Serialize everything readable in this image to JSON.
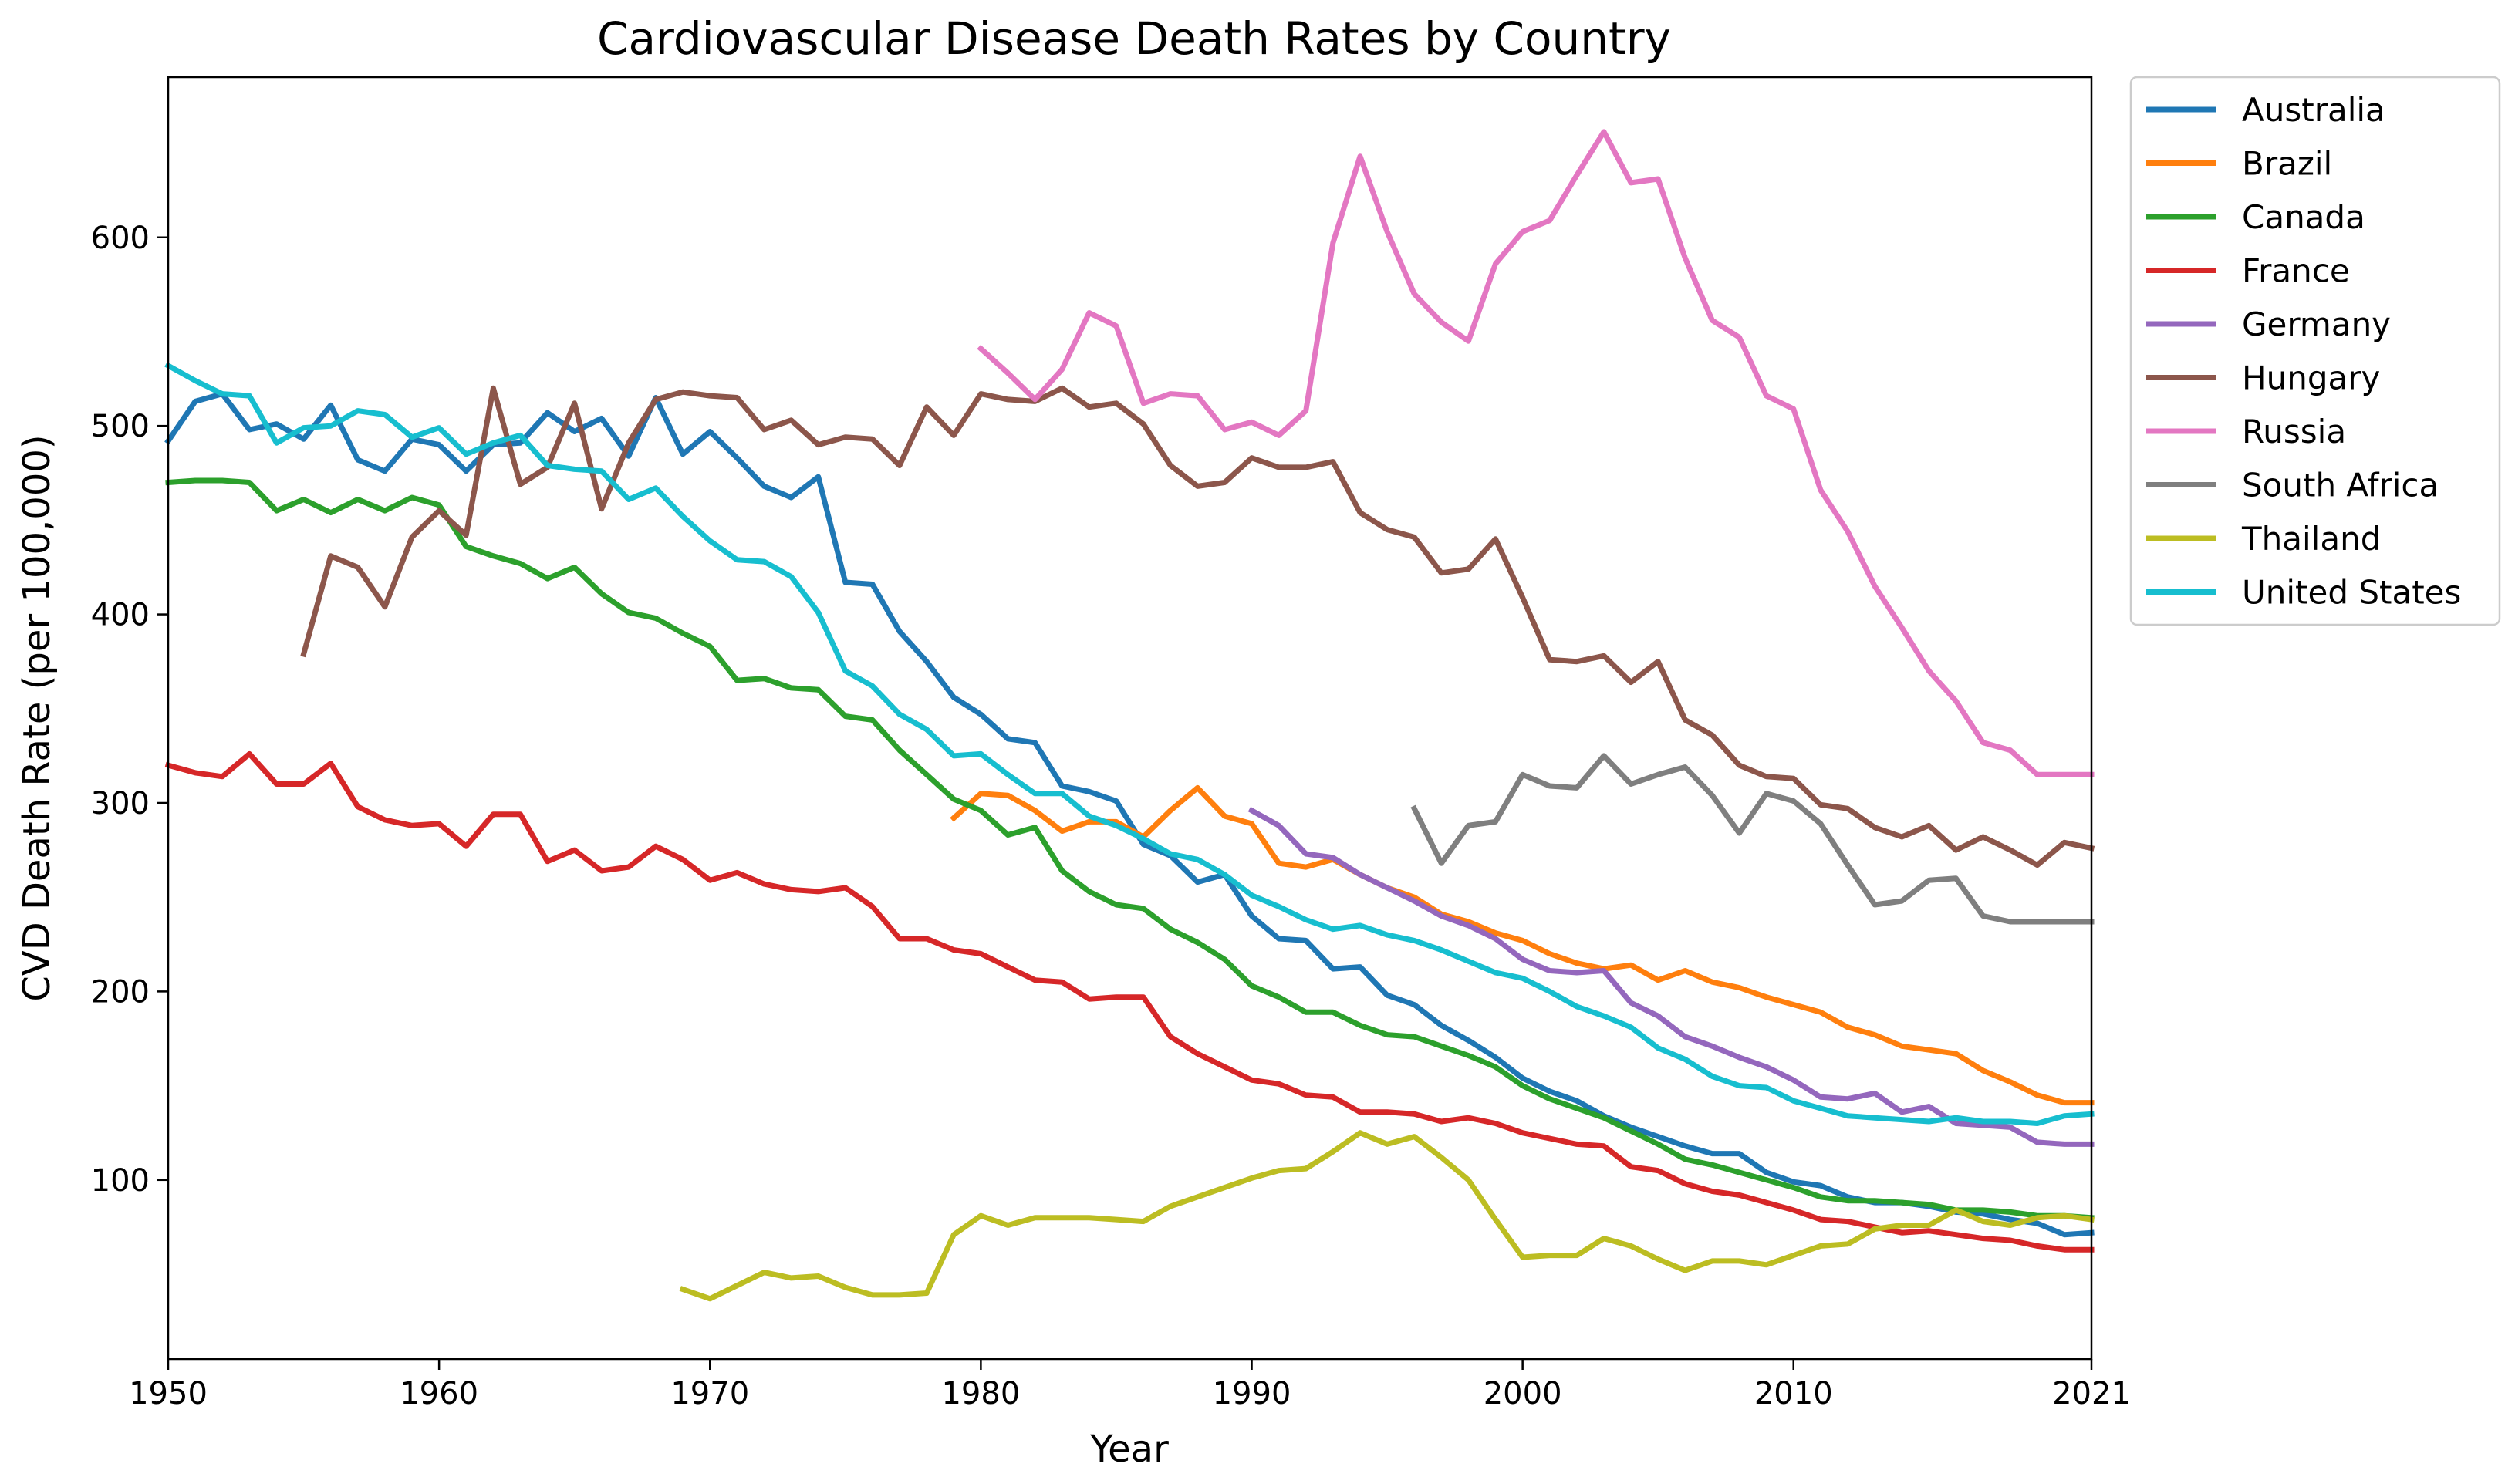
{
  "chart_data": {
    "type": "line",
    "title": "Cardiovascular Disease Death Rates by Country",
    "xlabel": "Year",
    "ylabel": "CVD Death Rate (per 100,000)",
    "xlim": [
      1950,
      2021
    ],
    "ylim": [
      5,
      685
    ],
    "xticks": [
      1950,
      1960,
      1970,
      1980,
      1990,
      2000,
      2010,
      2021
    ],
    "yticks": [
      100,
      200,
      300,
      400,
      500,
      600
    ],
    "grid": false,
    "legend_position": "outside-top-right",
    "series": [
      {
        "name": "Australia",
        "color": "#1f77b4",
        "x_start": 1950,
        "values": [
          492,
          513,
          517,
          498,
          501,
          493,
          511,
          482,
          476,
          493,
          490,
          476,
          490,
          491,
          507,
          497,
          504,
          484,
          515,
          485,
          497,
          483,
          468,
          462,
          473,
          417,
          416,
          391,
          375,
          356,
          347,
          334,
          332,
          309,
          306,
          301,
          278,
          272,
          258,
          262,
          240,
          228,
          227,
          212,
          213,
          198,
          193,
          182,
          174,
          165,
          154,
          147,
          142,
          134,
          128,
          123,
          118,
          114,
          114,
          104,
          99,
          97,
          91,
          88,
          88,
          86,
          83,
          82,
          79,
          77,
          71,
          72
        ]
      },
      {
        "name": "Brazil",
        "color": "#ff7f0e",
        "x_start": 1979,
        "values": [
          292,
          305,
          304,
          296,
          285,
          290,
          290,
          282,
          296,
          308,
          293,
          289,
          268,
          266,
          270,
          262,
          255,
          250,
          241,
          237,
          231,
          227,
          220,
          215,
          212,
          214,
          206,
          211,
          205,
          202,
          197,
          193,
          189,
          181,
          177,
          171,
          169,
          167,
          158,
          152,
          145,
          141,
          141
        ]
      },
      {
        "name": "Canada",
        "color": "#2ca02c",
        "x_start": 1950,
        "values": [
          470,
          471,
          471,
          470,
          455,
          461,
          454,
          461,
          455,
          462,
          458,
          436,
          431,
          427,
          419,
          425,
          411,
          401,
          398,
          390,
          383,
          365,
          366,
          361,
          360,
          346,
          344,
          328,
          315,
          302,
          296,
          283,
          287,
          264,
          253,
          246,
          244,
          233,
          226,
          217,
          203,
          197,
          189,
          189,
          182,
          177,
          176,
          171,
          166,
          160,
          150,
          143,
          138,
          133,
          126,
          119,
          111,
          108,
          104,
          100,
          96,
          91,
          89,
          89,
          88,
          87,
          84,
          84,
          83,
          81,
          81,
          80
        ]
      },
      {
        "name": "France",
        "color": "#d62728",
        "x_start": 1950,
        "values": [
          320,
          316,
          314,
          326,
          310,
          310,
          321,
          298,
          291,
          288,
          289,
          277,
          294,
          294,
          269,
          275,
          264,
          266,
          277,
          270,
          259,
          263,
          257,
          254,
          253,
          255,
          245,
          228,
          228,
          222,
          220,
          213,
          206,
          205,
          196,
          197,
          197,
          176,
          167,
          160,
          153,
          151,
          145,
          144,
          136,
          136,
          135,
          131,
          133,
          130,
          125,
          122,
          119,
          118,
          107,
          105,
          98,
          94,
          92,
          88,
          84,
          79,
          78,
          75,
          72,
          73,
          71,
          69,
          68,
          65,
          63,
          63
        ]
      },
      {
        "name": "Germany",
        "color": "#9467bd",
        "x_start": 1990,
        "values": [
          296,
          288,
          273,
          271,
          262,
          255,
          248,
          240,
          235,
          228,
          217,
          211,
          210,
          211,
          194,
          187,
          176,
          171,
          165,
          160,
          153,
          144,
          143,
          146,
          136,
          139,
          130,
          129,
          128,
          120,
          119,
          119
        ]
      },
      {
        "name": "Hungary",
        "color": "#8c564b",
        "x_start": 1955,
        "values": [
          379,
          431,
          425,
          404,
          441,
          455,
          442,
          520,
          469,
          478,
          512,
          456,
          491,
          514,
          518,
          516,
          515,
          498,
          503,
          490,
          494,
          493,
          479,
          510,
          495,
          517,
          514,
          513,
          520,
          510,
          512,
          501,
          479,
          468,
          470,
          483,
          478,
          478,
          481,
          454,
          445,
          441,
          422,
          424,
          440,
          409,
          376,
          375,
          378,
          364,
          375,
          344,
          336,
          320,
          314,
          313,
          299,
          297,
          287,
          282,
          288,
          275,
          282,
          275,
          267,
          279,
          276
        ]
      },
      {
        "name": "Russia",
        "color": "#e377c2",
        "x_start": 1980,
        "values": [
          541,
          528,
          514,
          530,
          560,
          553,
          512,
          517,
          516,
          498,
          502,
          495,
          508,
          597,
          643,
          603,
          570,
          555,
          545,
          586,
          603,
          609,
          633,
          656,
          629,
          631,
          589,
          556,
          547,
          516,
          509,
          466,
          444,
          415,
          393,
          370,
          354,
          332,
          328,
          315,
          315,
          315
        ]
      },
      {
        "name": "South Africa",
        "color": "#7f7f7f",
        "x_start": 1996,
        "values": [
          297,
          268,
          288,
          290,
          315,
          309,
          308,
          325,
          310,
          315,
          319,
          304,
          284,
          305,
          301,
          289,
          267,
          246,
          248,
          259,
          260,
          240,
          237,
          237,
          237,
          237
        ]
      },
      {
        "name": "Thailand",
        "color": "#bcbd22",
        "x_start": 1969,
        "values": [
          42,
          37,
          44,
          51,
          48,
          49,
          43,
          39,
          39,
          40,
          71,
          81,
          76,
          80,
          80,
          80,
          79,
          78,
          86,
          91,
          96,
          101,
          105,
          106,
          115,
          125,
          119,
          123,
          112,
          100,
          79,
          59,
          60,
          60,
          69,
          65,
          58,
          52,
          57,
          57,
          55,
          60,
          65,
          66,
          74,
          76,
          76,
          84,
          78,
          76,
          80,
          81,
          79
        ]
      },
      {
        "name": "United States",
        "color": "#17becf",
        "x_start": 1950,
        "values": [
          532,
          524,
          517,
          516,
          491,
          499,
          500,
          508,
          506,
          494,
          499,
          485,
          491,
          495,
          479,
          477,
          476,
          461,
          467,
          452,
          439,
          429,
          428,
          420,
          401,
          370,
          362,
          347,
          339,
          325,
          326,
          315,
          305,
          305,
          293,
          288,
          281,
          273,
          270,
          262,
          251,
          245,
          238,
          233,
          235,
          230,
          227,
          222,
          216,
          210,
          207,
          200,
          192,
          187,
          181,
          170,
          164,
          155,
          150,
          149,
          142,
          138,
          134,
          133,
          132,
          131,
          133,
          131,
          131,
          130,
          134,
          135
        ]
      }
    ]
  }
}
